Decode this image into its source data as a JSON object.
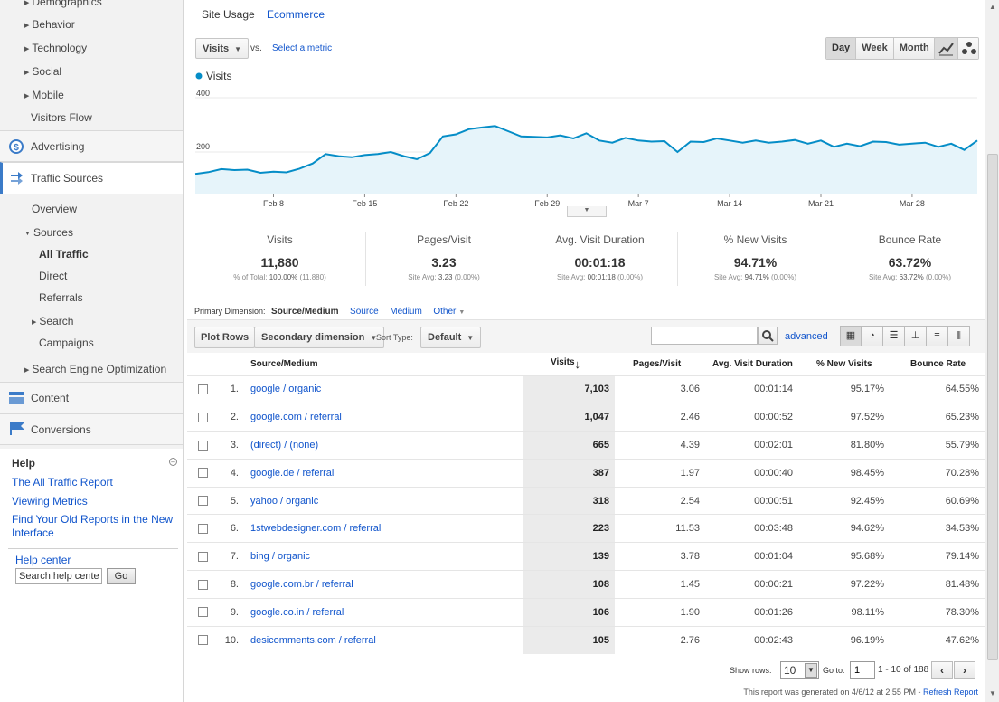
{
  "sidebar": {
    "audience_items": [
      {
        "label": "Demographics",
        "expandable": true
      },
      {
        "label": "Behavior",
        "expandable": true
      },
      {
        "label": "Technology",
        "expandable": true
      },
      {
        "label": "Social",
        "expandable": true
      },
      {
        "label": "Mobile",
        "expandable": true
      },
      {
        "label": "Visitors Flow",
        "expandable": false
      }
    ],
    "advertising": "Advertising",
    "traffic_sources": "Traffic Sources",
    "overview": "Overview",
    "sources": "Sources",
    "sources_children": [
      {
        "label": "All Traffic",
        "active": true
      },
      {
        "label": "Direct"
      },
      {
        "label": "Referrals"
      },
      {
        "label": "Search",
        "expandable": true
      },
      {
        "label": "Campaigns"
      }
    ],
    "seo": "Search Engine Optimization",
    "content": "Content",
    "conversions": "Conversions"
  },
  "help": {
    "title": "Help",
    "links": [
      "The All Traffic Report",
      "Viewing Metrics",
      "Find Your Old Reports in the New Interface"
    ],
    "help_center": "Help center",
    "search_value": "Search help center",
    "go_label": "Go"
  },
  "tabs": {
    "site_usage": "Site Usage",
    "ecommerce": "Ecommerce"
  },
  "chart_controls": {
    "metric": "Visits",
    "vs": "vs.",
    "select_metric": "Select a metric",
    "day": "Day",
    "week": "Week",
    "month": "Month",
    "active_period": "Day"
  },
  "chart_data": {
    "type": "area",
    "legend": "Visits",
    "y_ticks": [
      "400",
      "200"
    ],
    "ylim": [
      0,
      480
    ],
    "x_ticks": [
      "Feb 8",
      "Feb 15",
      "Feb 22",
      "Feb 29",
      "Mar 7",
      "Mar 14",
      "Mar 21",
      "Mar 28"
    ],
    "start_tick_index": 6,
    "values": [
      95,
      103,
      118,
      113,
      115,
      100,
      105,
      102,
      120,
      145,
      190,
      180,
      175,
      185,
      190,
      200,
      180,
      165,
      195,
      275,
      285,
      310,
      318,
      325,
      300,
      275,
      273,
      270,
      280,
      265,
      290,
      255,
      245,
      268,
      255,
      250,
      252,
      200,
      250,
      248,
      265,
      255,
      245,
      255,
      245,
      250,
      258,
      240,
      255,
      225,
      240,
      228,
      250,
      248,
      235,
      240,
      245,
      225,
      240,
      210,
      255
    ],
    "color": "#058dc7",
    "fill": "#e6f4fa"
  },
  "metrics": [
    {
      "label": "Visits",
      "value": "11,880",
      "sub_label": "% of Total:",
      "sub_value": "100.00%",
      "sub_extra": "(11,880)"
    },
    {
      "label": "Pages/Visit",
      "value": "3.23",
      "sub_label": "Site Avg:",
      "sub_value": "3.23",
      "sub_extra": "(0.00%)"
    },
    {
      "label": "Avg. Visit Duration",
      "value": "00:01:18",
      "sub_label": "Site Avg:",
      "sub_value": "00:01:18",
      "sub_extra": "(0.00%)"
    },
    {
      "label": "% New Visits",
      "value": "94.71%",
      "sub_label": "Site Avg:",
      "sub_value": "94.71%",
      "sub_extra": "(0.00%)"
    },
    {
      "label": "Bounce Rate",
      "value": "63.72%",
      "sub_label": "Site Avg:",
      "sub_value": "63.72%",
      "sub_extra": "(0.00%)"
    }
  ],
  "dimension": {
    "label": "Primary Dimension:",
    "selected": "Source/Medium",
    "options": [
      "Source",
      "Medium",
      "Other"
    ]
  },
  "toolbar": {
    "plot_rows": "Plot Rows",
    "secondary": "Secondary dimension",
    "sort_type_label": "Sort Type:",
    "sort_type": "Default",
    "search_value": "",
    "advanced": "advanced"
  },
  "table": {
    "headers": [
      "Source/Medium",
      "Visits",
      "Pages/Visit",
      "Avg. Visit Duration",
      "% New Visits",
      "Bounce Rate"
    ],
    "rows": [
      {
        "n": "1.",
        "source": "google / organic",
        "visits": "7,103",
        "ppv": "3.06",
        "dur": "00:01:14",
        "new": "95.17%",
        "bounce": "64.55%"
      },
      {
        "n": "2.",
        "source": "google.com / referral",
        "visits": "1,047",
        "ppv": "2.46",
        "dur": "00:00:52",
        "new": "97.52%",
        "bounce": "65.23%"
      },
      {
        "n": "3.",
        "source": "(direct) / (none)",
        "visits": "665",
        "ppv": "4.39",
        "dur": "00:02:01",
        "new": "81.80%",
        "bounce": "55.79%"
      },
      {
        "n": "4.",
        "source": "google.de / referral",
        "visits": "387",
        "ppv": "1.97",
        "dur": "00:00:40",
        "new": "98.45%",
        "bounce": "70.28%"
      },
      {
        "n": "5.",
        "source": "yahoo / organic",
        "visits": "318",
        "ppv": "2.54",
        "dur": "00:00:51",
        "new": "92.45%",
        "bounce": "60.69%"
      },
      {
        "n": "6.",
        "source": "1stwebdesigner.com / referral",
        "visits": "223",
        "ppv": "11.53",
        "dur": "00:03:48",
        "new": "94.62%",
        "bounce": "34.53%"
      },
      {
        "n": "7.",
        "source": "bing / organic",
        "visits": "139",
        "ppv": "3.78",
        "dur": "00:01:04",
        "new": "95.68%",
        "bounce": "79.14%"
      },
      {
        "n": "8.",
        "source": "google.com.br / referral",
        "visits": "108",
        "ppv": "1.45",
        "dur": "00:00:21",
        "new": "97.22%",
        "bounce": "81.48%"
      },
      {
        "n": "9.",
        "source": "google.co.in / referral",
        "visits": "106",
        "ppv": "1.90",
        "dur": "00:01:26",
        "new": "98.11%",
        "bounce": "78.30%"
      },
      {
        "n": "10.",
        "source": "desicomments.com / referral",
        "visits": "105",
        "ppv": "2.76",
        "dur": "00:02:43",
        "new": "96.19%",
        "bounce": "47.62%"
      }
    ]
  },
  "pagination": {
    "show_rows_label": "Show rows:",
    "show_rows": "10",
    "goto_label": "Go to:",
    "goto": "1",
    "range": "1 - 10 of 188"
  },
  "footer": {
    "generated": "This report was generated on 4/6/12 at 2:55 PM -",
    "refresh": "Refresh Report"
  },
  "colors": {
    "accent": "#058dc7",
    "link": "#1155cc",
    "active_border": "#3b7bc8"
  }
}
